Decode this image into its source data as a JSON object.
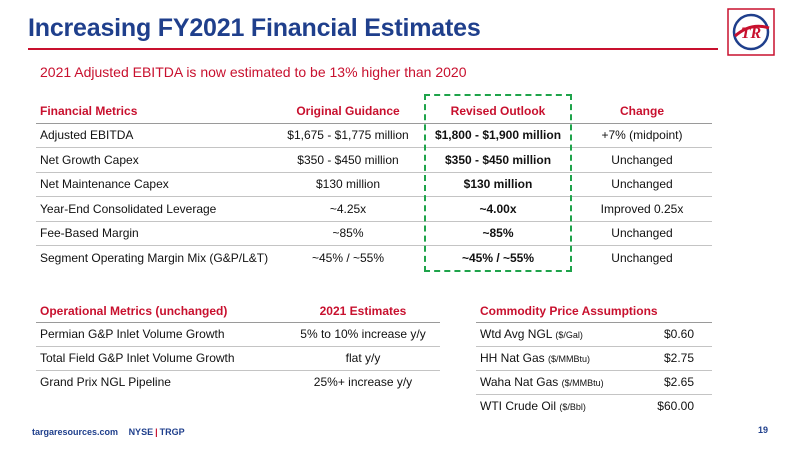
{
  "title": "Increasing FY2021 Financial Estimates",
  "subtitle": "2021 Adjusted EBITDA is now estimated to be 13% higher than 2020",
  "logo_text": "TR",
  "financial": {
    "headers": [
      "Financial Metrics",
      "Original Guidance",
      "Revised Outlook",
      "Change"
    ],
    "rows": [
      [
        "Adjusted EBITDA",
        "$1,675 - $1,775 million",
        "$1,800 - $1,900 million",
        "+7% (midpoint)"
      ],
      [
        "Net Growth Capex",
        "$350 - $450 million",
        "$350 - $450 million",
        "Unchanged"
      ],
      [
        "Net Maintenance Capex",
        "$130 million",
        "$130 million",
        "Unchanged"
      ],
      [
        "Year-End Consolidated Leverage",
        "~4.25x",
        "~4.00x",
        "Improved 0.25x"
      ],
      [
        "Fee-Based Margin",
        "~85%",
        "~85%",
        "Unchanged"
      ],
      [
        "Segment Operating Margin Mix (G&P/L&T)",
        "~45% / ~55%",
        "~45% / ~55%",
        "Unchanged"
      ]
    ]
  },
  "operational": {
    "headers": [
      "Operational Metrics (unchanged)",
      "2021 Estimates"
    ],
    "rows": [
      [
        "Permian G&P Inlet Volume Growth",
        "5% to 10% increase y/y"
      ],
      [
        "Total Field G&P Inlet Volume Growth",
        "flat y/y"
      ],
      [
        "Grand Prix NGL Pipeline",
        "25%+ increase y/y"
      ]
    ]
  },
  "commodity": {
    "header": "Commodity Price Assumptions",
    "rows": [
      {
        "name": "Wtd Avg NGL",
        "unit": "($/Gal)",
        "value": "$0.60"
      },
      {
        "name": "HH Nat Gas",
        "unit": "($/MMBtu)",
        "value": "$2.75"
      },
      {
        "name": "Waha Nat Gas",
        "unit": "($/MMBtu)",
        "value": "$2.65"
      },
      {
        "name": "WTI Crude Oil",
        "unit": "($/Bbl)",
        "value": "$60.00"
      }
    ]
  },
  "footer": {
    "site": "targaresources.com",
    "exchange": "NYSE",
    "ticker": "TRGP"
  },
  "page_number": "19",
  "colors": {
    "title_blue": "#1f3f8c",
    "accent_red": "#c8102e",
    "highlight_green": "#1ea34a"
  }
}
